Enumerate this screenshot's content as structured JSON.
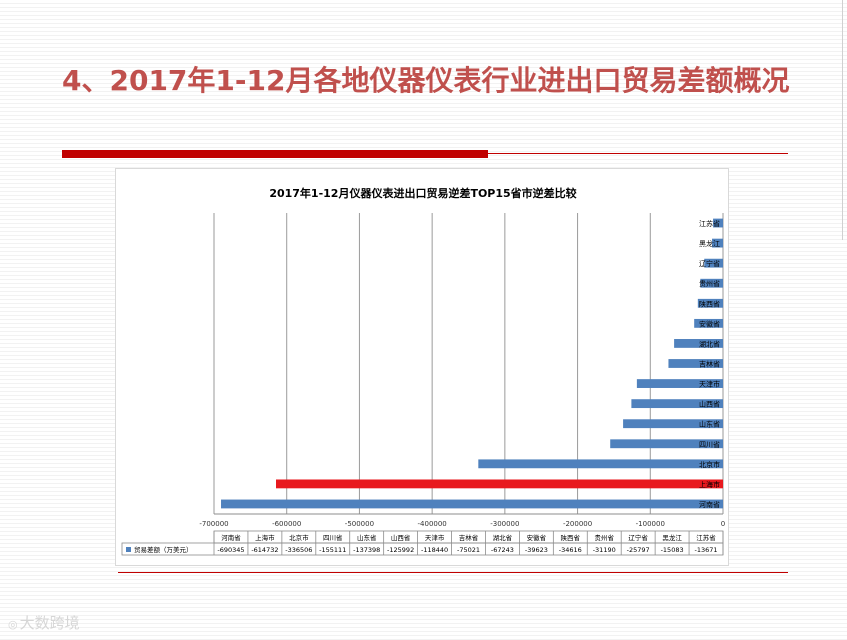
{
  "slide": {
    "title": "4、2017年1-12月各地仪器仪表行业进出口贸易差额概况"
  },
  "watermark": {
    "text": "大数跨境",
    "icon": "camera-icon"
  },
  "colors": {
    "title": "#c0504d",
    "accent_bar": "#c00000",
    "series_bar": "#4f81bd",
    "highlight_bar": "#e8191e"
  },
  "chart_data": {
    "type": "bar",
    "orientation": "horizontal",
    "title": "2017年1-12月仪器仪表进出口贸易逆差TOP15省市逆差比较",
    "categories": [
      "河南省",
      "上海市",
      "北京市",
      "四川省",
      "山东省",
      "山西省",
      "天津市",
      "吉林省",
      "湖北省",
      "安徽省",
      "陕西省",
      "贵州省",
      "辽宁省",
      "黑龙江",
      "江苏省"
    ],
    "series": [
      {
        "name": "贸易差额（万美元）",
        "values": [
          -690345,
          -614732,
          -336506,
          -155111,
          -137398,
          -125992,
          -118440,
          -75021,
          -67243,
          -39623,
          -34616,
          -31190,
          -25797,
          -15083,
          -13671
        ]
      }
    ],
    "highlight_category": "上海市",
    "xlim": [
      -700000,
      0
    ],
    "xticks": [
      -700000,
      -600000,
      -500000,
      -400000,
      -300000,
      -200000,
      -100000,
      0
    ],
    "xtick_labels": [
      "-700000",
      "-600000",
      "-500000",
      "-400000",
      "-300000",
      "-200000",
      "-100000",
      "0"
    ],
    "data_table": {
      "headers": [
        "河南省",
        "上海市",
        "北京市",
        "四川省",
        "山东省",
        "山西省",
        "天津市",
        "吉林省",
        "湖北省",
        "安徽省",
        "陕西省",
        "贵州省",
        "辽宁省",
        "黑龙江",
        "江苏省"
      ],
      "values": [
        "-690345",
        "-614732",
        "-336506",
        "-155111",
        "-137398",
        "-125992",
        "-118440",
        "-75021",
        "-67243",
        "-39623",
        "-34616",
        "-31190",
        "-25797",
        "-15083",
        "-13671"
      ],
      "legend_label": "贸易差额（万美元）"
    },
    "grid": true
  }
}
